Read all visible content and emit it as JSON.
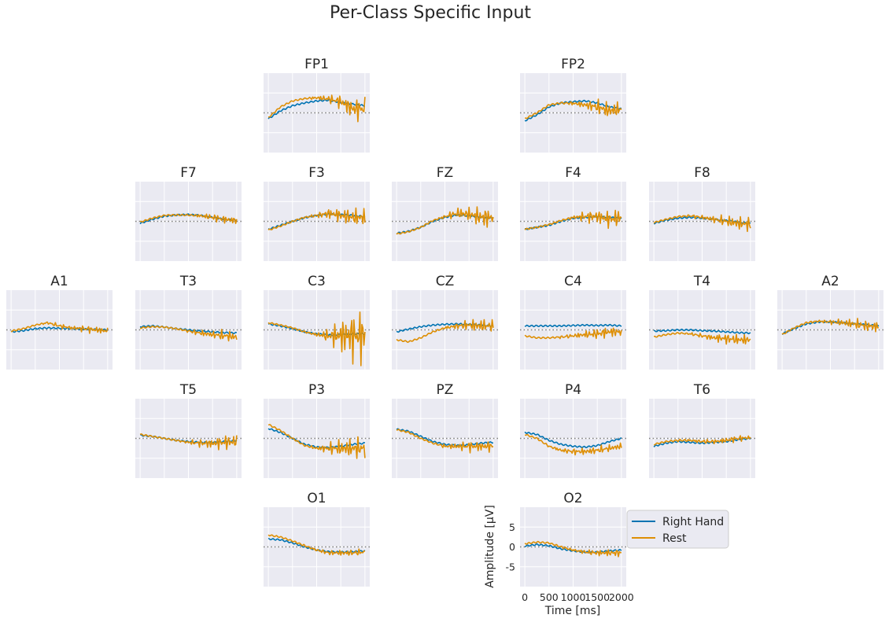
{
  "chart_data": {
    "type": "line",
    "title": "Per-Class Specific Input",
    "xlabel": "Time [ms]",
    "ylabel": "Amplitude [µV]",
    "xlim": [
      -100,
      2100
    ],
    "ylim": [
      -10,
      10
    ],
    "xticks": [
      0,
      500,
      1000,
      1500,
      2000
    ],
    "yticks": [
      -5,
      0,
      5
    ],
    "grid": true,
    "legend_position": "right of O2",
    "series_names": [
      "Right Hand",
      "Rest"
    ],
    "colors": {
      "right_hand": "#0173b2",
      "rest": "#de8f05",
      "zero_line": "#7f7f7f",
      "panel_bg": "#eaeaf2"
    },
    "x": [
      0,
      250,
      500,
      750,
      1000,
      1250,
      1500,
      1750,
      2000
    ],
    "channels": [
      {
        "name": "FP1",
        "right_hand": [
          -1.5,
          0.5,
          1.8,
          2.5,
          3.0,
          3.2,
          2.6,
          2.2,
          1.8
        ],
        "rest": [
          -1.2,
          1.5,
          3.0,
          3.6,
          3.8,
          3.5,
          2.8,
          1.0,
          1.0
        ],
        "rest_osc": [
          0,
          0,
          0,
          0,
          0.5,
          1.0,
          2.0,
          3.0,
          3.5
        ]
      },
      {
        "name": "FP2",
        "right_hand": [
          -2.0,
          -0.5,
          1.5,
          2.5,
          2.8,
          3.0,
          2.5,
          1.5,
          1.0
        ],
        "rest": [
          -1.5,
          0,
          2.0,
          2.5,
          2.4,
          2.0,
          1.5,
          0.5,
          1.0
        ],
        "rest_osc": [
          0,
          0,
          0,
          0,
          0.5,
          1.0,
          2.0,
          2.5,
          2.0
        ]
      },
      {
        "name": "F7",
        "right_hand": [
          -0.5,
          0.5,
          1.3,
          1.6,
          1.7,
          1.5,
          1.0,
          0.5,
          0.3
        ],
        "rest": [
          -0.2,
          0.8,
          1.5,
          1.6,
          1.6,
          1.4,
          1.0,
          0.5,
          0.2
        ],
        "rest_osc": [
          0,
          0,
          0,
          0,
          0,
          0.5,
          1.0,
          1.0,
          1.0
        ]
      },
      {
        "name": "F3",
        "right_hand": [
          -2.0,
          -1.0,
          0,
          0.9,
          1.5,
          1.8,
          1.7,
          1.5,
          1.2
        ],
        "rest": [
          -2.2,
          -1.2,
          0,
          1.0,
          1.5,
          2.0,
          1.5,
          1.0,
          1.0
        ],
        "rest_osc": [
          0,
          0,
          0,
          0,
          0.5,
          1.5,
          2.0,
          2.5,
          2.5
        ]
      },
      {
        "name": "FZ",
        "right_hand": [
          -3.0,
          -2.5,
          -1.5,
          0,
          1.0,
          1.6,
          1.4,
          1.0,
          0.8
        ],
        "rest": [
          -3.2,
          -2.6,
          -1.5,
          0.2,
          1.2,
          2.0,
          1.8,
          1.0,
          1.0
        ],
        "rest_osc": [
          0,
          0,
          0,
          0,
          0.5,
          1.5,
          2.0,
          3.0,
          3.0
        ]
      },
      {
        "name": "F4",
        "right_hand": [
          -2.0,
          -1.5,
          -1.0,
          0,
          0.8,
          1.0,
          1.2,
          1.0,
          0.8
        ],
        "rest": [
          -2.0,
          -1.5,
          -0.8,
          0.2,
          1.0,
          1.2,
          1.2,
          0.5,
          1.0
        ],
        "rest_osc": [
          0,
          0,
          0,
          0,
          0.5,
          1.5,
          2.0,
          2.5,
          2.5
        ]
      },
      {
        "name": "F8",
        "right_hand": [
          -0.5,
          0.3,
          0.8,
          1.0,
          0.8,
          0.5,
          0.2,
          -0.2,
          -0.5
        ],
        "rest": [
          -0.3,
          0.5,
          1.2,
          1.4,
          1.0,
          0.5,
          0,
          -0.5,
          -0.8
        ],
        "rest_osc": [
          0,
          0,
          0,
          0.3,
          0.5,
          1.0,
          1.5,
          2.0,
          2.0
        ]
      },
      {
        "name": "A1",
        "right_hand": [
          -0.5,
          -0.2,
          0.3,
          0.5,
          0.4,
          0.3,
          0.2,
          0.1,
          0
        ],
        "rest": [
          -0.3,
          0.3,
          1.2,
          1.8,
          1.0,
          0.5,
          0.3,
          0,
          -0.3
        ],
        "rest_osc": [
          0,
          0,
          0,
          0.3,
          0.5,
          0.5,
          0.8,
          1.0,
          1.0
        ]
      },
      {
        "name": "T3",
        "right_hand": [
          0.8,
          1.0,
          0.7,
          0.3,
          0,
          -0.3,
          -0.5,
          -0.7,
          -0.8
        ],
        "rest": [
          0.5,
          0.8,
          0.7,
          0.3,
          -0.3,
          -0.8,
          -1.2,
          -1.5,
          -1.8
        ],
        "rest_osc": [
          0,
          0,
          0,
          0,
          0.3,
          0.8,
          1.0,
          1.5,
          1.5
        ]
      },
      {
        "name": "C3",
        "right_hand": [
          1.5,
          1.0,
          0.3,
          -0.5,
          -1.0,
          -1.3,
          -1.2,
          -1.0,
          -1.0
        ],
        "rest": [
          1.8,
          1.2,
          0.5,
          -0.5,
          -1.2,
          -1.5,
          -1.5,
          -1.5,
          -1.5
        ],
        "rest_osc": [
          0,
          0,
          0,
          0,
          0.5,
          2.0,
          5.0,
          7.5,
          8.0
        ]
      },
      {
        "name": "CZ",
        "right_hand": [
          -0.5,
          0.2,
          0.8,
          1.2,
          1.4,
          1.5,
          1.4,
          1.2,
          1.0
        ],
        "rest": [
          -2.5,
          -3.0,
          -2.0,
          -0.5,
          0.5,
          1.0,
          1.2,
          1.0,
          1.0
        ],
        "rest_osc": [
          0,
          0,
          0,
          0,
          0.3,
          0.8,
          1.5,
          2.0,
          1.5
        ]
      },
      {
        "name": "C4",
        "right_hand": [
          1.0,
          1.0,
          1.0,
          1.0,
          1.1,
          1.2,
          1.1,
          1.2,
          1.0
        ],
        "rest": [
          -1.5,
          -2.0,
          -2.0,
          -1.8,
          -1.5,
          -1.2,
          -1.0,
          -0.5,
          -0.5
        ],
        "rest_osc": [
          0,
          0,
          0,
          0.3,
          0.5,
          1.0,
          1.5,
          1.5,
          1.5
        ]
      },
      {
        "name": "T4",
        "right_hand": [
          -0.3,
          -0.2,
          0,
          0,
          -0.2,
          -0.3,
          -0.5,
          -0.7,
          -0.8
        ],
        "rest": [
          -1.8,
          -1.2,
          -0.8,
          -1.0,
          -1.5,
          -2.0,
          -2.2,
          -2.5,
          -2.5
        ],
        "rest_osc": [
          0,
          0,
          0,
          0.3,
          0.5,
          1.0,
          1.5,
          1.5,
          1.5
        ]
      },
      {
        "name": "A2",
        "right_hand": [
          -1.0,
          0.3,
          1.5,
          2.0,
          2.0,
          1.8,
          1.5,
          1.3,
          1.0
        ],
        "rest": [
          -1.2,
          0.5,
          1.8,
          2.2,
          2.0,
          1.8,
          1.5,
          1.0,
          0.8
        ],
        "rest_osc": [
          0,
          0,
          0,
          0.3,
          0.5,
          1.0,
          1.5,
          1.5,
          1.5
        ]
      },
      {
        "name": "T5",
        "right_hand": [
          0.8,
          0.5,
          0,
          -0.5,
          -0.8,
          -1.0,
          -1.0,
          -0.8,
          -0.5
        ],
        "rest": [
          1.0,
          0.5,
          0,
          -0.5,
          -1.0,
          -1.2,
          -1.3,
          -1.0,
          -0.8
        ],
        "rest_osc": [
          0,
          0,
          0,
          0,
          0.5,
          1.0,
          1.5,
          2.0,
          2.0
        ]
      },
      {
        "name": "P3",
        "right_hand": [
          2.5,
          1.5,
          0,
          -1.5,
          -2.2,
          -2.3,
          -2.0,
          -1.5,
          -1.2
        ],
        "rest": [
          3.5,
          2.0,
          0,
          -1.8,
          -2.5,
          -2.5,
          -2.5,
          -2.5,
          -2.5
        ],
        "rest_osc": [
          0,
          0,
          0,
          0,
          0.5,
          1.5,
          2.5,
          3.0,
          3.0
        ]
      },
      {
        "name": "PZ",
        "right_hand": [
          2.3,
          1.8,
          0.5,
          -0.8,
          -1.5,
          -1.8,
          -1.6,
          -1.2,
          -1.0
        ],
        "rest": [
          2.2,
          1.5,
          0,
          -1.2,
          -2.0,
          -2.0,
          -2.0,
          -2.0,
          -2.0
        ],
        "rest_osc": [
          0,
          0,
          0,
          0,
          0.5,
          1.0,
          1.5,
          1.5,
          1.5
        ]
      },
      {
        "name": "P4",
        "right_hand": [
          1.5,
          1.0,
          -0.5,
          -1.5,
          -2.0,
          -2.2,
          -1.8,
          -0.8,
          0
        ],
        "rest": [
          1.0,
          0,
          -2.0,
          -3.0,
          -3.3,
          -3.3,
          -3.0,
          -2.5,
          -2.0
        ],
        "rest_osc": [
          0,
          0,
          0.2,
          0.5,
          0.8,
          1.0,
          1.0,
          1.0,
          1.0
        ]
      },
      {
        "name": "T6",
        "right_hand": [
          -2.0,
          -1.2,
          -0.8,
          -1.0,
          -1.2,
          -1.0,
          -0.8,
          -0.3,
          0
        ],
        "rest": [
          -1.5,
          -0.8,
          -0.5,
          -0.5,
          -0.8,
          -0.8,
          -0.5,
          0,
          0.2
        ],
        "rest_osc": [
          0,
          0,
          0.2,
          0.3,
          0.5,
          0.5,
          0.8,
          0.8,
          0.5
        ]
      },
      {
        "name": "O1",
        "right_hand": [
          2.0,
          1.8,
          1.0,
          0,
          -0.8,
          -1.2,
          -1.3,
          -1.2,
          -1.0
        ],
        "rest": [
          3.0,
          2.5,
          1.5,
          0.3,
          -0.8,
          -1.5,
          -1.5,
          -1.5,
          -1.3
        ],
        "rest_osc": [
          0,
          0,
          0,
          0.2,
          0.3,
          0.5,
          0.8,
          0.8,
          0.8
        ]
      },
      {
        "name": "O2",
        "right_hand": [
          0.2,
          0.6,
          0.3,
          -0.5,
          -1.0,
          -1.3,
          -1.3,
          -1.0,
          -0.8
        ],
        "rest": [
          0.8,
          1.2,
          1.0,
          0,
          -0.8,
          -1.3,
          -1.5,
          -1.5,
          -1.5
        ],
        "rest_osc": [
          0,
          0,
          0,
          0.2,
          0.3,
          0.5,
          0.8,
          1.0,
          1.0
        ]
      }
    ]
  }
}
